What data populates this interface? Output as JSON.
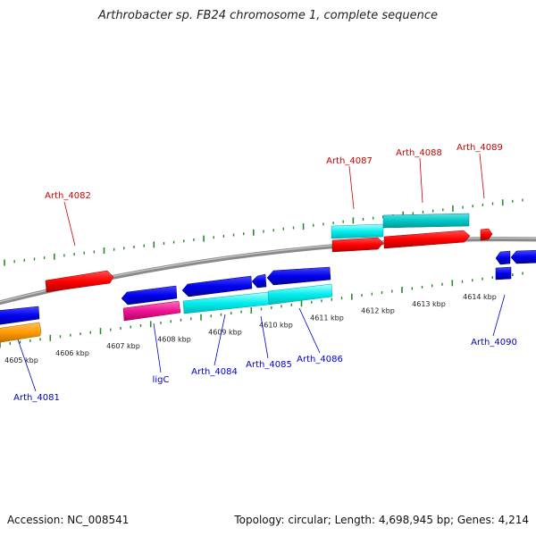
{
  "title": "Arthrobacter sp. FB24 chromosome 1, complete sequence",
  "footer": {
    "accession": "Accession: NC_008541",
    "summary": "Topology: circular; Length: 4,698,945 bp; Genes: 4,214"
  },
  "colors": {
    "backbone": "#8a8a8a",
    "tick": "#2a8a2a",
    "label_top": "#cc0000",
    "label_bottom": "#0000cc"
  },
  "kbp_ticks": [
    {
      "kbp": 4605,
      "label": "4605 kbp"
    },
    {
      "kbp": 4606,
      "label": "4606 kbp"
    },
    {
      "kbp": 4607,
      "label": "4607 kbp"
    },
    {
      "kbp": 4608,
      "label": "4608 kbp"
    },
    {
      "kbp": 4609,
      "label": "4609 kbp"
    },
    {
      "kbp": 4610,
      "label": "4610 kbp"
    },
    {
      "kbp": 4611,
      "label": "4611 kbp"
    },
    {
      "kbp": 4612,
      "label": "4612 kbp"
    },
    {
      "kbp": 4613,
      "label": "4613 kbp"
    },
    {
      "kbp": 4614,
      "label": "4614 kbp"
    }
  ],
  "gene_labels_top": [
    {
      "id": "arth-4082",
      "text": "Arth_4082"
    },
    {
      "id": "arth-4087",
      "text": "Arth_4087"
    },
    {
      "id": "arth-4088",
      "text": "Arth_4088"
    },
    {
      "id": "arth-4089",
      "text": "Arth_4089"
    }
  ],
  "gene_labels_bottom": [
    {
      "id": "arth-4081",
      "text": "Arth_4081"
    },
    {
      "id": "ligc",
      "text": "ligC"
    },
    {
      "id": "arth-4084",
      "text": "Arth_4084"
    },
    {
      "id": "arth-4085",
      "text": "Arth_4085"
    },
    {
      "id": "arth-4086",
      "text": "Arth_4086"
    },
    {
      "id": "arth-4090",
      "text": "Arth_4090"
    }
  ]
}
